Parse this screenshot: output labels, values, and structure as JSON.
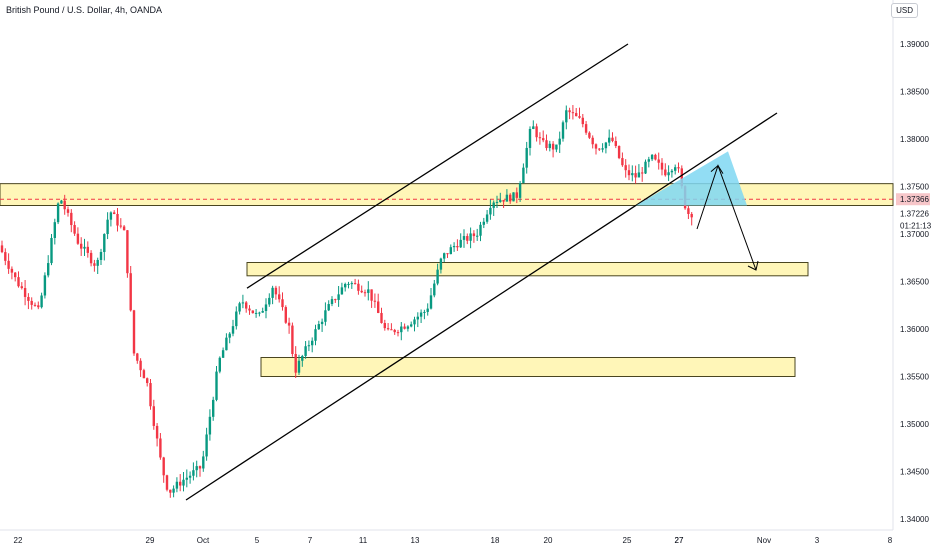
{
  "header": {
    "symbol_title": "British Pound / U.S. Dollar, 4h, OANDA",
    "currency": "USD"
  },
  "colors": {
    "up": "#089981",
    "down": "#f23645",
    "zone_fill": "#fff3a0",
    "zone_stroke": "#4a4520",
    "projection": "#7fd7f2",
    "channel": "#000000",
    "price_marker_bg": "#f7c6c9",
    "price_marker_text": "#e0323d"
  },
  "chart_data": {
    "type": "candlestick",
    "y_ticks": [
      "1.39000",
      "1.38500",
      "1.38000",
      "1.37500",
      "1.37000",
      "1.36500",
      "1.36000",
      "1.35500",
      "1.35000",
      "1.34500",
      "1.34000"
    ],
    "x_ticks": [
      "22",
      "27",
      "29",
      "Oct",
      "5",
      "7",
      "11",
      "13",
      "18",
      "20",
      "25",
      "27",
      "Nov",
      "3",
      "8"
    ],
    "current_price": "1.37366",
    "last_price": "1.37226",
    "countdown": "01:21:13",
    "zones": [
      {
        "name": "upper-resistance-zone",
        "y_low": 1.373,
        "y_high": 1.3753,
        "x_start": "22",
        "x_end": "8"
      },
      {
        "name": "middle-support-zone",
        "y_low": 1.3656,
        "y_high": 1.367,
        "x_start": "5",
        "x_end": "Nov"
      },
      {
        "name": "lower-support-zone",
        "y_low": 1.355,
        "y_high": 1.357,
        "x_start": "5",
        "x_end": "Nov"
      }
    ],
    "channel_lines": [
      {
        "name": "channel-upper-line",
        "from": {
          "t": "5",
          "y": 1.3643
        },
        "to": {
          "t": "30",
          "y": 1.39
        }
      },
      {
        "name": "channel-lower-line",
        "from": {
          "t": "30",
          "y": 1.342
        },
        "to": {
          "t": "Nov",
          "y": 1.383
        }
      }
    ],
    "projection": {
      "start_price": 1.3725,
      "peak_price": 1.3772,
      "target_price": 1.366
    }
  }
}
